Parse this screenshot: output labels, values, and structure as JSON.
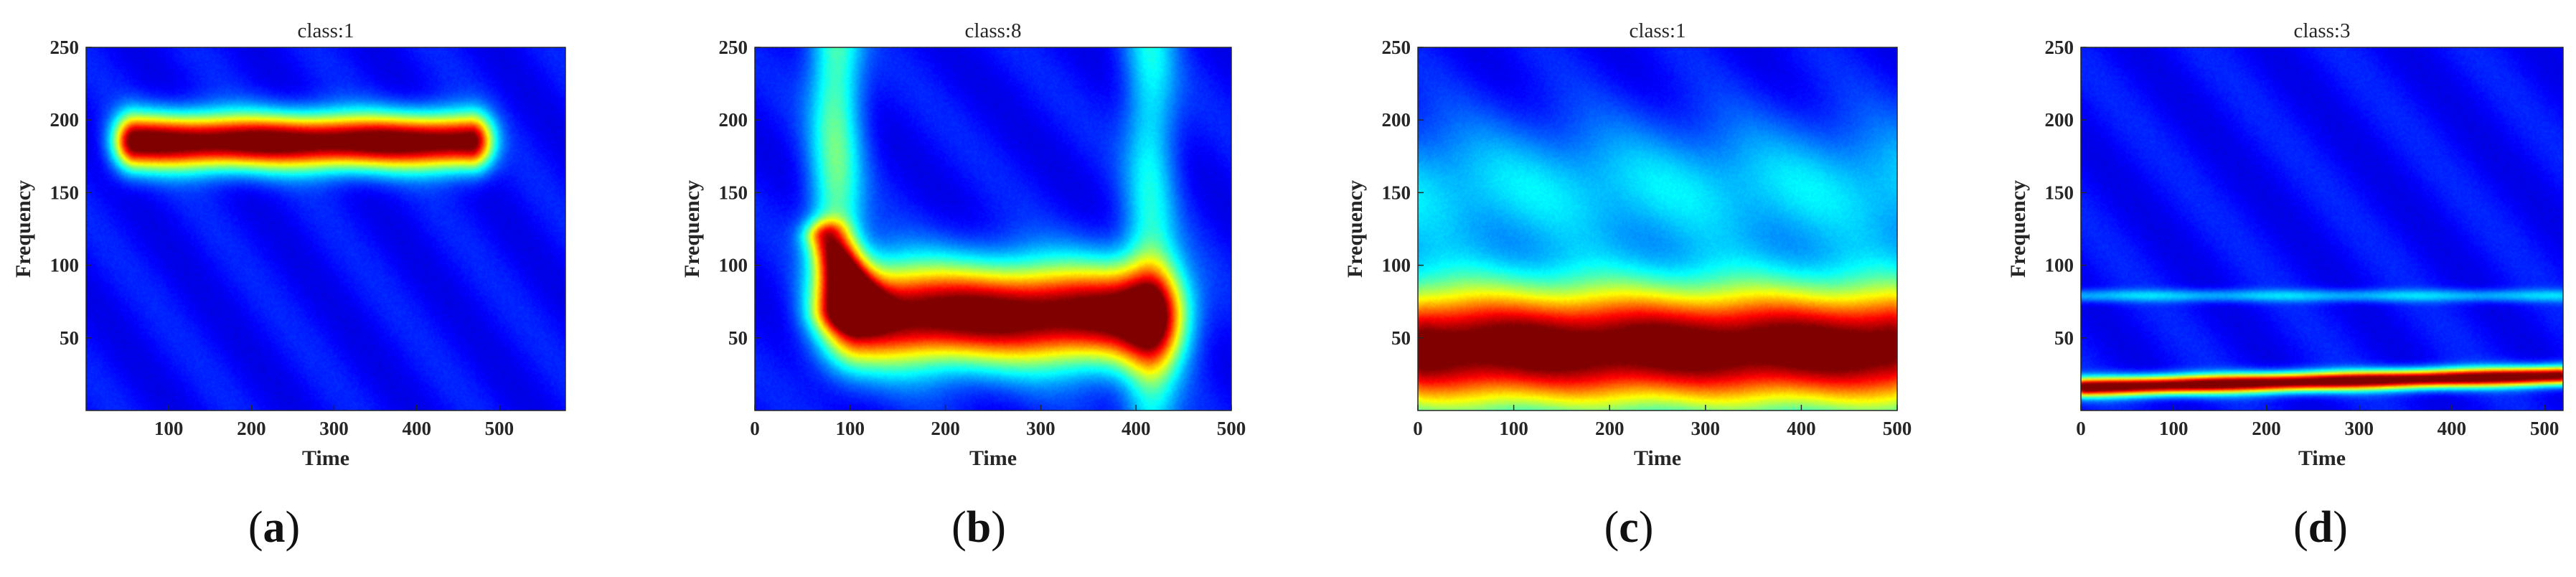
{
  "figure": {
    "colormap": "jet",
    "background_color": "#00008f",
    "panels": [
      {
        "id": "a",
        "caption_letter": "a",
        "title": "class:1",
        "xlabel": "Time",
        "ylabel": "Frequency"
      },
      {
        "id": "b",
        "caption_letter": "b",
        "title": "class:8",
        "xlabel": "Time",
        "ylabel": "Frequency"
      },
      {
        "id": "c",
        "caption_letter": "c",
        "title": "class:1",
        "xlabel": "Time",
        "ylabel": "Frequency"
      },
      {
        "id": "d",
        "caption_letter": "d",
        "title": "class:3",
        "xlabel": "Time",
        "ylabel": "Frequency"
      }
    ]
  },
  "chart_data": [
    {
      "type": "heatmap",
      "title": "class:1",
      "xlabel": "Time",
      "ylabel": "Frequency",
      "xlim": [
        0,
        580
      ],
      "ylim": [
        0,
        250
      ],
      "xticks": [
        100,
        200,
        300,
        400,
        500
      ],
      "yticks": [
        50,
        100,
        150,
        200,
        250
      ],
      "colormap": "jet",
      "features": [
        {
          "shape": "horizontal_band",
          "t_start": 60,
          "t_end": 465,
          "frequency": 185,
          "thickness": 14,
          "peak": 1.0
        }
      ]
    },
    {
      "type": "heatmap",
      "title": "class:8",
      "xlabel": "Time",
      "ylabel": "Frequency",
      "xlim": [
        0,
        500
      ],
      "ylim": [
        0,
        250
      ],
      "xticks": [
        0,
        100,
        200,
        300,
        400,
        500
      ],
      "yticks": [
        50,
        100,
        150,
        200,
        250
      ],
      "colormap": "jet",
      "features": [
        {
          "shape": "horizontal_band",
          "t_start": 110,
          "t_end": 410,
          "frequency": 66,
          "thickness": 22,
          "peak": 1.0
        },
        {
          "shape": "vertical_band",
          "t": 85,
          "f_start": 70,
          "f_end": 250,
          "width": 20,
          "peak": 0.35
        },
        {
          "shape": "vertical_band",
          "t": 415,
          "f_start": 0,
          "f_end": 250,
          "width": 20,
          "peak": 0.25
        },
        {
          "shape": "diagonal",
          "t_start": 75,
          "f_start": 120,
          "t_end": 115,
          "f_end": 70,
          "width": 16,
          "peak": 0.55
        }
      ]
    },
    {
      "type": "heatmap",
      "title": "class:1",
      "xlabel": "Time",
      "ylabel": "Frequency",
      "xlim": [
        0,
        500
      ],
      "ylim": [
        0,
        250
      ],
      "xticks": [
        0,
        100,
        200,
        300,
        400,
        500
      ],
      "yticks": [
        50,
        100,
        150,
        200,
        250
      ],
      "colormap": "jet",
      "features": [
        {
          "shape": "horizontal_band",
          "t_start": 10,
          "t_end": 490,
          "frequency": 43,
          "thickness": 28,
          "peak": 1.0
        },
        {
          "shape": "horizontal_band",
          "t_start": 0,
          "t_end": 500,
          "frequency": 152,
          "thickness": 30,
          "peak": 0.22
        }
      ]
    },
    {
      "type": "heatmap",
      "title": "class:3",
      "xlabel": "Time",
      "ylabel": "Frequency",
      "xlim": [
        0,
        520
      ],
      "ylim": [
        0,
        250
      ],
      "xticks": [
        0,
        100,
        200,
        300,
        400,
        500
      ],
      "yticks": [
        50,
        100,
        150,
        200,
        250
      ],
      "colormap": "jet",
      "features": [
        {
          "shape": "ramp_line",
          "t_start": 5,
          "f_start": 16,
          "t_end": 515,
          "f_end": 24,
          "thickness": 5,
          "peak": 1.0
        },
        {
          "shape": "horizontal_band",
          "t_start": 0,
          "t_end": 520,
          "frequency": 79,
          "thickness": 3,
          "peak": 0.2
        }
      ]
    }
  ]
}
